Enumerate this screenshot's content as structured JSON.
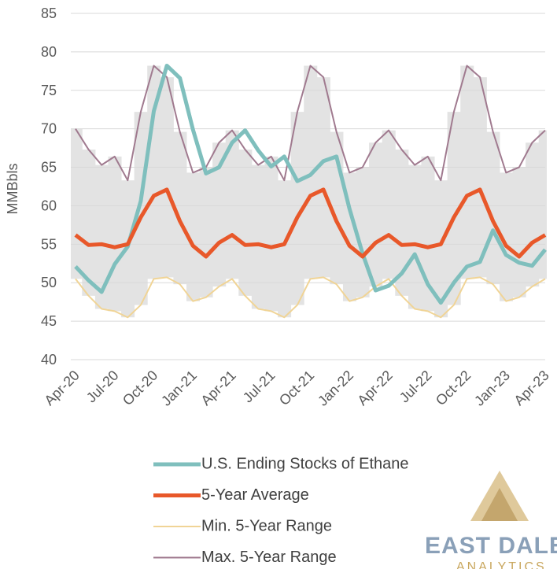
{
  "chart_data": {
    "type": "line",
    "y_label": "MMBbls",
    "categories": [
      "Apr-20",
      null,
      null,
      "Jul-20",
      null,
      null,
      "Oct-20",
      null,
      null,
      "Jan-21",
      null,
      null,
      "Apr-21",
      null,
      null,
      "Jul-21",
      null,
      null,
      "Oct-21",
      null,
      null,
      "Jan-22",
      null,
      null,
      "Apr-22",
      null,
      null,
      "Jul-22",
      null,
      null,
      "Oct-22",
      null,
      null,
      "Jan-23",
      null,
      null,
      "Apr-23"
    ],
    "ylim": [
      40,
      85
    ],
    "yticks": [
      40,
      45,
      50,
      55,
      60,
      65,
      70,
      75,
      80,
      85
    ],
    "grid": true,
    "range_fill": "#e3e3e3",
    "series": [
      {
        "name": "U.S. Ending Stocks of Ethane",
        "color": "#7fbfbd",
        "values": [
          52.1,
          50.3,
          48.8,
          52.4,
          54.7,
          60.6,
          72.3,
          78.2,
          76.6,
          69.9,
          64.2,
          65.0,
          68.2,
          69.8,
          67.2,
          65.1,
          66.4,
          63.2,
          64.0,
          65.8,
          66.4,
          59.6,
          53.8,
          49.0,
          49.6,
          51.2,
          53.7,
          49.8,
          47.4,
          50.0,
          52.1,
          52.7,
          56.8,
          53.6,
          52.6,
          52.2,
          54.3
        ]
      },
      {
        "name": "5-Year Average",
        "color": "#e8582a",
        "values": [
          56.2,
          54.9,
          55.0,
          54.6,
          55.0,
          58.5,
          61.3,
          62.1,
          58.0,
          54.8,
          53.4,
          55.2,
          56.2,
          54.9,
          55.0,
          54.6,
          55.0,
          58.5,
          61.3,
          62.1,
          58.0,
          54.8,
          53.4,
          55.2,
          56.2,
          54.9,
          55.0,
          54.6,
          55.0,
          58.5,
          61.3,
          62.1,
          58.0,
          54.8,
          53.4,
          55.2,
          56.2
        ]
      },
      {
        "name": "Min. 5-Year Range",
        "color": "#f0d496",
        "values": [
          50.5,
          48.3,
          46.6,
          46.3,
          45.5,
          47.1,
          50.5,
          50.7,
          49.8,
          47.6,
          48.1,
          49.5,
          50.5,
          48.3,
          46.6,
          46.3,
          45.5,
          47.1,
          50.5,
          50.7,
          49.8,
          47.6,
          48.1,
          49.5,
          50.5,
          48.3,
          46.6,
          46.3,
          45.5,
          47.1,
          50.5,
          50.7,
          49.8,
          47.6,
          48.1,
          49.5,
          50.5
        ]
      },
      {
        "name": "Max. 5-Year Range",
        "color": "#a07a8f",
        "values": [
          70.0,
          67.3,
          65.3,
          66.4,
          63.3,
          72.2,
          78.2,
          76.7,
          69.6,
          64.3,
          65.0,
          68.2,
          69.8,
          67.3,
          65.3,
          66.4,
          63.3,
          72.2,
          78.2,
          76.7,
          69.6,
          64.3,
          65.0,
          68.2,
          69.8,
          67.3,
          65.3,
          66.4,
          63.3,
          72.2,
          78.2,
          76.7,
          69.6,
          64.3,
          65.0,
          68.2,
          69.8
        ]
      }
    ]
  },
  "logo": {
    "name": "EAST DALEY",
    "sub": "ANALYTICS"
  }
}
